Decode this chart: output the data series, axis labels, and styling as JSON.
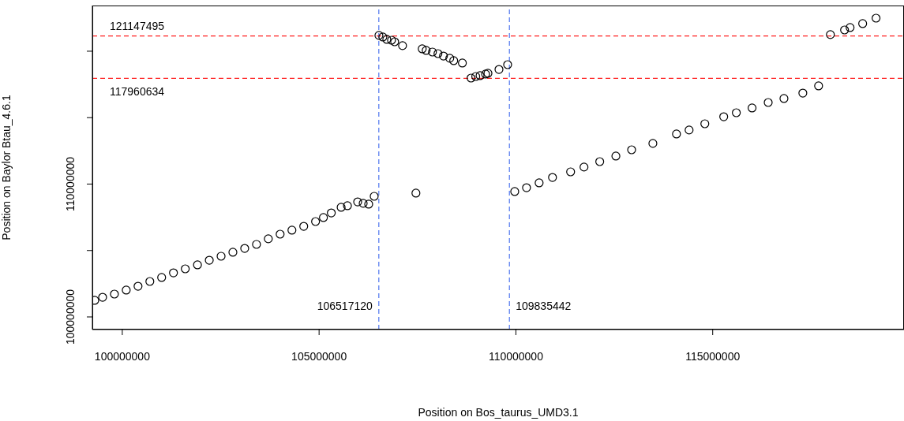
{
  "chart_data": {
    "type": "scatter",
    "xlabel": "Position on Bos_taurus_UMD3.1",
    "ylabel": "Position on Baylor Btau_4.6.1",
    "xlim": [
      99240000,
      119860000
    ],
    "ylim": [
      99050000,
      123440000
    ],
    "xticks": [
      100000000,
      105000000,
      110000000,
      115000000
    ],
    "yticks": [
      100000000,
      {
        "value": 105000000,
        "label": null
      },
      110000000,
      {
        "value": 115000000,
        "label": null
      },
      {
        "value": 120000000,
        "label": null
      }
    ],
    "grid": false,
    "legend": false,
    "marker": "circle",
    "x": [
      99300000,
      99500000,
      99800000,
      100100000,
      100400000,
      100700000,
      101000000,
      101300000,
      101600000,
      101910000,
      102210000,
      102510000,
      102810000,
      103110000,
      103410000,
      103710000,
      104010000,
      104310000,
      104610000,
      104910000,
      105110000,
      105310000,
      105560000,
      105720000,
      105980000,
      106120000,
      106260000,
      106400000,
      107460000,
      106520000,
      106620000,
      106720000,
      106840000,
      106920000,
      107120000,
      107620000,
      107720000,
      107880000,
      108020000,
      108160000,
      108320000,
      108420000,
      108640000,
      108860000,
      108980000,
      109090000,
      109230000,
      109290000,
      109570000,
      109790000,
      109970000,
      110270000,
      110590000,
      110930000,
      111390000,
      111730000,
      112130000,
      112540000,
      112940000,
      113480000,
      114080000,
      114400000,
      114800000,
      115280000,
      115600000,
      116000000,
      116410000,
      116810000,
      117290000,
      117690000,
      117990000,
      118350000,
      118490000,
      118810000,
      119150000
    ],
    "series": [
      {
        "color": "#000000",
        "values": [
          101250000,
          101480000,
          101720000,
          102020000,
          102310000,
          102670000,
          102970000,
          103320000,
          103620000,
          103920000,
          104270000,
          104570000,
          104870000,
          105160000,
          105460000,
          105880000,
          106230000,
          106530000,
          106820000,
          107180000,
          107480000,
          107830000,
          108250000,
          108370000,
          108660000,
          108550000,
          108490000,
          109080000,
          109320000,
          121190000,
          121070000,
          120890000,
          120830000,
          120710000,
          120420000,
          120180000,
          120060000,
          119940000,
          119820000,
          119640000,
          119470000,
          119290000,
          119110000,
          117980000,
          118100000,
          118160000,
          118280000,
          118340000,
          118630000,
          118990000,
          109440000,
          109730000,
          110090000,
          110500000,
          110920000,
          111280000,
          111690000,
          112110000,
          112580000,
          113060000,
          113770000,
          114070000,
          114540000,
          115070000,
          115370000,
          115730000,
          116140000,
          116440000,
          116850000,
          117390000,
          121250000,
          121600000,
          121780000,
          122080000,
          122490000
        ]
      }
    ],
    "ref_lines": [
      {
        "axis": "x",
        "value": 106517120,
        "label": "106517120",
        "color": "#5b7ff0",
        "line_style": "dashed"
      },
      {
        "axis": "x",
        "value": 109835442,
        "label": "109835442",
        "color": "#5b7ff0",
        "line_style": "dashed"
      },
      {
        "axis": "y",
        "value": 121147495,
        "label": "121147495",
        "color": "#ff2020",
        "line_style": "dashed"
      },
      {
        "axis": "y",
        "value": 117960634,
        "label": "117960634",
        "color": "#ff2020",
        "line_style": "dashed"
      }
    ]
  }
}
